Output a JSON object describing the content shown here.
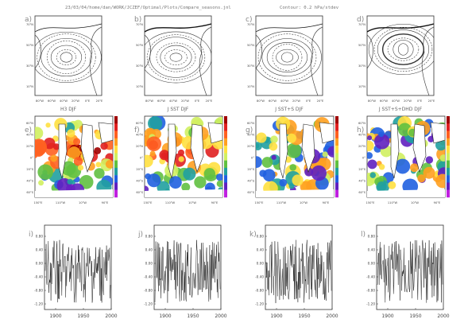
{
  "header": {
    "path": "23/03/04/home/dan/WORK/JCZEF/Optimal/Plots/Compare_seasons.jnl",
    "contour_note": "Contour: 0.2 hPa/stdev"
  },
  "top_row": {
    "panels": [
      {
        "letter": "a)",
        "title": "H3 DJF"
      },
      {
        "letter": "b)",
        "title": "J SST DJF"
      },
      {
        "letter": "c)",
        "title": "J SST+S DJF"
      },
      {
        "letter": "d)",
        "title": "J SST+S+DHD DJF"
      }
    ],
    "lat_labels": [
      "70°N",
      "50°N",
      "30°N",
      "10°N"
    ],
    "lon_labels": [
      "80°W",
      "60°W",
      "40°W",
      "20°W",
      "0°E",
      "20°E"
    ]
  },
  "middle_row": {
    "panels": [
      {
        "letter": "e)"
      },
      {
        "letter": "f)"
      },
      {
        "letter": "g)"
      },
      {
        "letter": "h)"
      }
    ],
    "lat_labels": [
      "60°N",
      "40°N",
      "20°N",
      "0°",
      "20°S",
      "40°S",
      "60°S"
    ],
    "lon_labels": [
      "150°E",
      "110°W",
      "10°W",
      "90°E"
    ]
  },
  "bottom_row": {
    "panels": [
      {
        "letter": "i)"
      },
      {
        "letter": "j)"
      },
      {
        "letter": "k)"
      },
      {
        "letter": "l)"
      }
    ],
    "y_ticks": [
      "0.80",
      "0.40",
      "0.00",
      "-0.40",
      "-0.80",
      "-1.20"
    ],
    "x_ticks": [
      "1900",
      "1950",
      "2000"
    ]
  },
  "colors": {
    "land": "#ffffff",
    "ink": "#222222",
    "colorbar": [
      "#a00000",
      "#e02020",
      "#ff6020",
      "#ffa020",
      "#ffe040",
      "#d0f060",
      "#60c040",
      "#20a0a0",
      "#2060e0",
      "#6020c0",
      "#c020e0"
    ]
  }
}
